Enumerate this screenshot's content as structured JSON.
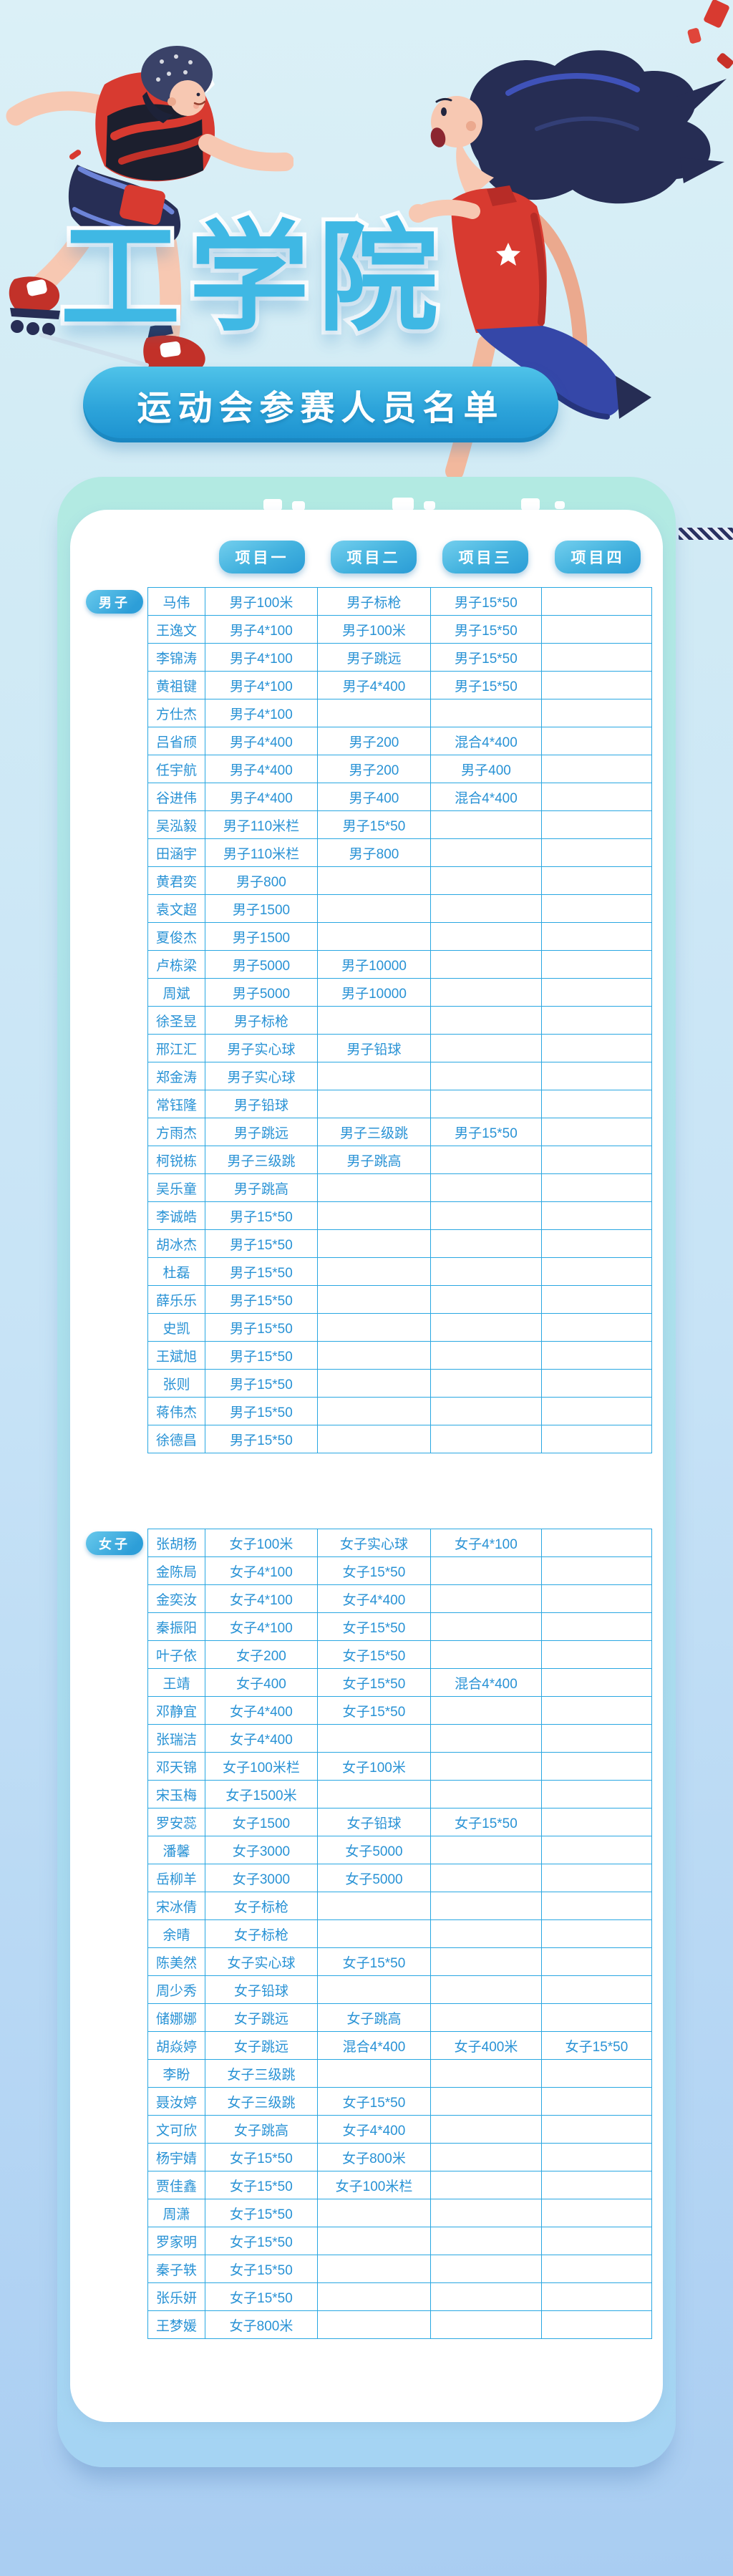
{
  "header": {
    "college_title": "工学院",
    "subtitle": "运动会参赛人员名单"
  },
  "table": {
    "headers": [
      "项目一",
      "项目二",
      "项目三",
      "项目四"
    ],
    "sections": [
      {
        "label": "男子",
        "rows": [
          [
            "马伟",
            "男子100米",
            "男子标枪",
            "男子15*50",
            ""
          ],
          [
            "王逸文",
            "男子4*100",
            "男子100米",
            "男子15*50",
            ""
          ],
          [
            "李锦涛",
            "男子4*100",
            "男子跳远",
            "男子15*50",
            ""
          ],
          [
            "黄祖键",
            "男子4*100",
            "男子4*400",
            "男子15*50",
            ""
          ],
          [
            "方仕杰",
            "男子4*100",
            "",
            "",
            ""
          ],
          [
            "吕省颀",
            "男子4*400",
            "男子200",
            "混合4*400",
            ""
          ],
          [
            "任宇航",
            "男子4*400",
            "男子200",
            "男子400",
            ""
          ],
          [
            "谷进伟",
            "男子4*400",
            "男子400",
            "混合4*400",
            ""
          ],
          [
            "吴泓毅",
            "男子110米栏",
            "男子15*50",
            "",
            ""
          ],
          [
            "田涵宇",
            "男子110米栏",
            "男子800",
            "",
            ""
          ],
          [
            "黄君奕",
            "男子800",
            "",
            "",
            ""
          ],
          [
            "袁文超",
            "男子1500",
            "",
            "",
            ""
          ],
          [
            "夏俊杰",
            "男子1500",
            "",
            "",
            ""
          ],
          [
            "卢栋梁",
            "男子5000",
            "男子10000",
            "",
            ""
          ],
          [
            "周斌",
            "男子5000",
            "男子10000",
            "",
            ""
          ],
          [
            "徐圣昱",
            "男子标枪",
            "",
            "",
            ""
          ],
          [
            "邢江汇",
            "男子实心球",
            "男子铅球",
            "",
            ""
          ],
          [
            "郑金涛",
            "男子实心球",
            "",
            "",
            ""
          ],
          [
            "常钰隆",
            "男子铅球",
            "",
            "",
            ""
          ],
          [
            "方雨杰",
            "男子跳远",
            "男子三级跳",
            "男子15*50",
            ""
          ],
          [
            "柯锐栋",
            "男子三级跳",
            "男子跳高",
            "",
            ""
          ],
          [
            "吴乐童",
            "男子跳高",
            "",
            "",
            ""
          ],
          [
            "李诚皓",
            "男子15*50",
            "",
            "",
            ""
          ],
          [
            "胡冰杰",
            "男子15*50",
            "",
            "",
            ""
          ],
          [
            "杜磊",
            "男子15*50",
            "",
            "",
            ""
          ],
          [
            "薛乐乐",
            "男子15*50",
            "",
            "",
            ""
          ],
          [
            "史凯",
            "男子15*50",
            "",
            "",
            ""
          ],
          [
            "王斌旭",
            "男子15*50",
            "",
            "",
            ""
          ],
          [
            "张则",
            "男子15*50",
            "",
            "",
            ""
          ],
          [
            "蒋伟杰",
            "男子15*50",
            "",
            "",
            ""
          ],
          [
            "徐德昌",
            "男子15*50",
            "",
            "",
            ""
          ]
        ]
      },
      {
        "label": "女子",
        "rows": [
          [
            "张胡杨",
            "女子100米",
            "女子实心球",
            "女子4*100",
            ""
          ],
          [
            "金陈局",
            "女子4*100",
            "女子15*50",
            "",
            ""
          ],
          [
            "金奕汝",
            "女子4*100",
            "女子4*400",
            "",
            ""
          ],
          [
            "秦振阳",
            "女子4*100",
            "女子15*50",
            "",
            ""
          ],
          [
            "叶子依",
            "女子200",
            "女子15*50",
            "",
            ""
          ],
          [
            "王靖",
            "女子400",
            "女子15*50",
            "混合4*400",
            ""
          ],
          [
            "邓静宜",
            "女子4*400",
            "女子15*50",
            "",
            ""
          ],
          [
            "张瑞洁",
            "女子4*400",
            "",
            "",
            ""
          ],
          [
            "邓天锦",
            "女子100米栏",
            "女子100米",
            "",
            ""
          ],
          [
            "宋玉梅",
            "女子1500米",
            "",
            "",
            ""
          ],
          [
            "罗安蕊",
            "女子1500",
            "女子铅球",
            "女子15*50",
            ""
          ],
          [
            "潘馨",
            "女子3000",
            "女子5000",
            "",
            ""
          ],
          [
            "岳柳羊",
            "女子3000",
            "女子5000",
            "",
            ""
          ],
          [
            "宋冰倩",
            "女子标枪",
            "",
            "",
            ""
          ],
          [
            "余晴",
            "女子标枪",
            "",
            "",
            ""
          ],
          [
            "陈美然",
            "女子实心球",
            "女子15*50",
            "",
            ""
          ],
          [
            "周少秀",
            "女子铅球",
            "",
            "",
            ""
          ],
          [
            "储娜娜",
            "女子跳远",
            "女子跳高",
            "",
            ""
          ],
          [
            "胡焱婷",
            "女子跳远",
            "混合4*400",
            "女子400米",
            "女子15*50"
          ],
          [
            "李盼",
            "女子三级跳",
            "",
            "",
            ""
          ],
          [
            "聂汝婷",
            "女子三级跳",
            "女子15*50",
            "",
            ""
          ],
          [
            "文可欣",
            "女子跳高",
            "女子4*400",
            "",
            ""
          ],
          [
            "杨宇婧",
            "女子15*50",
            "女子800米",
            "",
            ""
          ],
          [
            "贾佳鑫",
            "女子15*50",
            "女子100米栏",
            "",
            ""
          ],
          [
            "周潇",
            "女子15*50",
            "",
            "",
            ""
          ],
          [
            "罗家明",
            "女子15*50",
            "",
            "",
            ""
          ],
          [
            "秦子轶",
            "女子15*50",
            "",
            "",
            ""
          ],
          [
            "张乐妍",
            "女子15*50",
            "",
            "",
            ""
          ],
          [
            "王梦媛",
            "女子800米",
            "",
            "",
            ""
          ]
        ]
      }
    ]
  },
  "colors": {
    "accent_blue": "#3fb8e4",
    "pill_blue_dark": "#1c91cf",
    "table_border": "#29a7e2",
    "cell_text": "#2892d5",
    "mint_card": "#b2eae2",
    "page_bg_bottom": "#a9cdf2",
    "illustration_red": "#d83a30",
    "illustration_navy": "#262d54"
  }
}
